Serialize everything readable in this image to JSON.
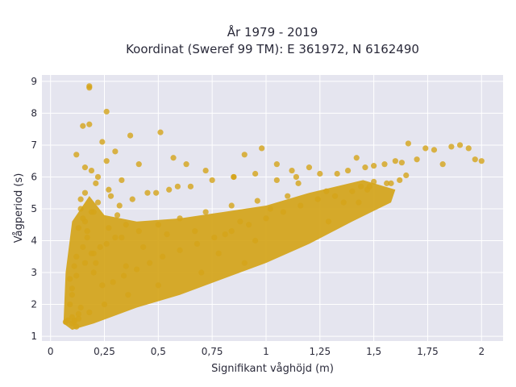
{
  "chart_data": {
    "type": "scatter",
    "title_line1": "År 1979 - 2019",
    "title_line2": "Koordinat (Sweref 99 TM): E 361972, N 6162490",
    "xlabel": "Signifikant våghöjd (m)",
    "ylabel": "Vågperiod (s)",
    "xlim": [
      -0.04,
      2.1
    ],
    "ylim": [
      0.85,
      9.2
    ],
    "x_ticks": [
      0,
      0.25,
      0.5,
      0.75,
      1,
      1.25,
      1.5,
      1.75,
      2
    ],
    "x_tick_labels": [
      "0",
      "0,25",
      "0,5",
      "0,75",
      "1",
      "1,25",
      "1,5",
      "1,75",
      "2"
    ],
    "y_ticks": [
      1,
      2,
      3,
      4,
      5,
      6,
      7,
      8,
      9
    ],
    "y_tick_labels": [
      "1",
      "2",
      "3",
      "4",
      "5",
      "6",
      "7",
      "8",
      "9"
    ],
    "grid": true,
    "colors": {
      "marker": "#d4a419",
      "plot_bg": "#e5e5ef",
      "grid": "#ffffff"
    },
    "series": [
      {
        "x": [
          0.18,
          0.18,
          0.26,
          0.15,
          0.18,
          0.37,
          0.51,
          0.24,
          0.3,
          0.41,
          0.57,
          0.33,
          0.21,
          0.19,
          0.16,
          0.12,
          0.26,
          0.22,
          0.27,
          0.49,
          0.59,
          0.63,
          0.72,
          0.85,
          0.9,
          0.98,
          1.05,
          1.12,
          1.14,
          1.2,
          1.25,
          1.33,
          1.38,
          1.42,
          1.46,
          1.5,
          1.55,
          1.6,
          1.63,
          1.66,
          1.7,
          1.74,
          1.78,
          1.82,
          1.86,
          1.9,
          1.94,
          1.97,
          2.0,
          1.65,
          1.5,
          1.43,
          1.29,
          0.81,
          0.67,
          0.43,
          0.35,
          0.12,
          0.1,
          0.11,
          0.13,
          0.14,
          0.1,
          0.09,
          0.11,
          0.15,
          0.17,
          0.19,
          0.22,
          0.28,
          0.32,
          0.38,
          0.45,
          0.55,
          0.65,
          0.75,
          0.85,
          0.95,
          1.05,
          1.15,
          0.14,
          0.16,
          0.12,
          0.2,
          0.24,
          0.29,
          0.34,
          0.4,
          0.46,
          0.52,
          0.6,
          0.68,
          0.76,
          0.84,
          0.92,
          1.0,
          1.08,
          1.16,
          1.24,
          1.32,
          1.4,
          1.48,
          1.56,
          1.62,
          0.9,
          0.7,
          0.5,
          0.36,
          0.25,
          0.18,
          0.13,
          0.11,
          0.1,
          0.08,
          0.07,
          0.09,
          0.1,
          0.12,
          0.16,
          0.2,
          0.26,
          0.33,
          0.41,
          0.5,
          0.6,
          0.72,
          0.84,
          0.96,
          1.1,
          1.28,
          1.44,
          1.58,
          0.95,
          0.78,
          0.3,
          0.35,
          0.23,
          0.27,
          0.31,
          0.54,
          0.88,
          1.02,
          1.36,
          1.47,
          0.13,
          0.15,
          0.17,
          0.19,
          0.21,
          0.14,
          0.16,
          0.2
        ],
        "y": [
          8.8,
          8.85,
          8.05,
          7.6,
          7.65,
          7.3,
          7.4,
          7.1,
          6.8,
          6.4,
          6.6,
          5.9,
          5.8,
          6.2,
          6.3,
          6.7,
          6.5,
          6.0,
          5.6,
          5.5,
          5.7,
          6.4,
          6.2,
          6.0,
          6.7,
          6.9,
          6.4,
          6.2,
          6.0,
          6.3,
          6.1,
          6.1,
          6.2,
          6.6,
          6.3,
          6.35,
          6.4,
          6.5,
          6.45,
          7.05,
          6.55,
          6.9,
          6.85,
          6.4,
          6.95,
          7.0,
          6.9,
          6.55,
          6.5,
          6.05,
          5.85,
          5.2,
          4.6,
          4.2,
          4.3,
          3.8,
          3.2,
          1.3,
          1.4,
          1.5,
          1.7,
          1.9,
          2.3,
          2.8,
          3.2,
          3.8,
          4.3,
          4.9,
          5.2,
          5.4,
          5.1,
          5.3,
          5.5,
          5.6,
          5.7,
          5.9,
          6.0,
          6.1,
          5.9,
          5.8,
          5.0,
          4.6,
          3.5,
          3.0,
          2.6,
          2.7,
          2.9,
          3.1,
          3.3,
          3.5,
          3.7,
          3.9,
          4.1,
          4.3,
          4.5,
          4.7,
          4.9,
          5.1,
          5.3,
          5.4,
          5.55,
          5.7,
          5.8,
          5.9,
          3.3,
          3.0,
          2.6,
          2.3,
          2.0,
          1.75,
          1.55,
          1.45,
          1.6,
          1.5,
          1.45,
          2.0,
          2.5,
          2.9,
          3.3,
          3.6,
          3.9,
          4.1,
          4.3,
          4.5,
          4.7,
          4.9,
          5.1,
          5.25,
          5.4,
          5.55,
          5.7,
          5.8,
          4.0,
          3.6,
          4.1,
          4.5,
          3.8,
          4.4,
          4.8,
          4.2,
          4.6,
          5.0,
          5.2,
          5.6,
          4.4,
          4.7,
          4.1,
          3.6,
          3.3,
          5.3,
          5.5,
          4.9
        ]
      }
    ]
  }
}
